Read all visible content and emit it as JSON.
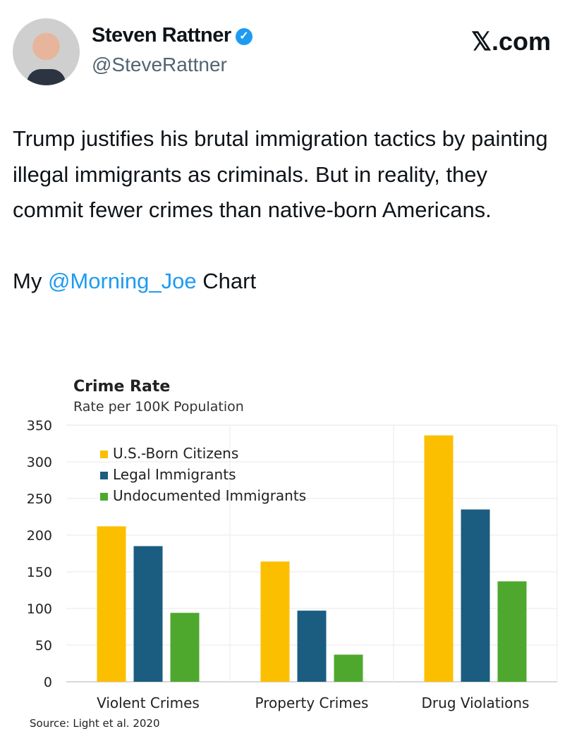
{
  "tweet": {
    "author": "Steven Rattner",
    "handle": "@SteveRattner",
    "site": "𝕏.com",
    "text": "Trump justifies his brutal immigration tactics by painting illegal immigrants as criminals. But in reality, they commit fewer crimes than native-born Americans.",
    "line2_prefix": "My ",
    "mention": "@Morning_Joe",
    "line2_suffix": " Chart"
  },
  "chart_data": {
    "type": "bar",
    "title": "Crime Rate",
    "subtitle": "Rate per 100K Population",
    "categories": [
      "Violent Crimes",
      "Property Crimes",
      "Drug Violations"
    ],
    "series": [
      {
        "name": "U.S.-Born Citizens",
        "color": "#fbbf00",
        "values": [
          212,
          164,
          336
        ]
      },
      {
        "name": "Legal Immigrants",
        "color": "#1a5d80",
        "values": [
          185,
          97,
          235
        ]
      },
      {
        "name": "Undocumented Immigrants",
        "color": "#4ea82e",
        "values": [
          94,
          37,
          137
        ]
      }
    ],
    "ylim": [
      0,
      350
    ],
    "yticks": [
      0,
      50,
      100,
      150,
      200,
      250,
      300,
      350
    ],
    "legend": "top-left",
    "grid": true,
    "source": "Source: Light et al. 2020"
  }
}
